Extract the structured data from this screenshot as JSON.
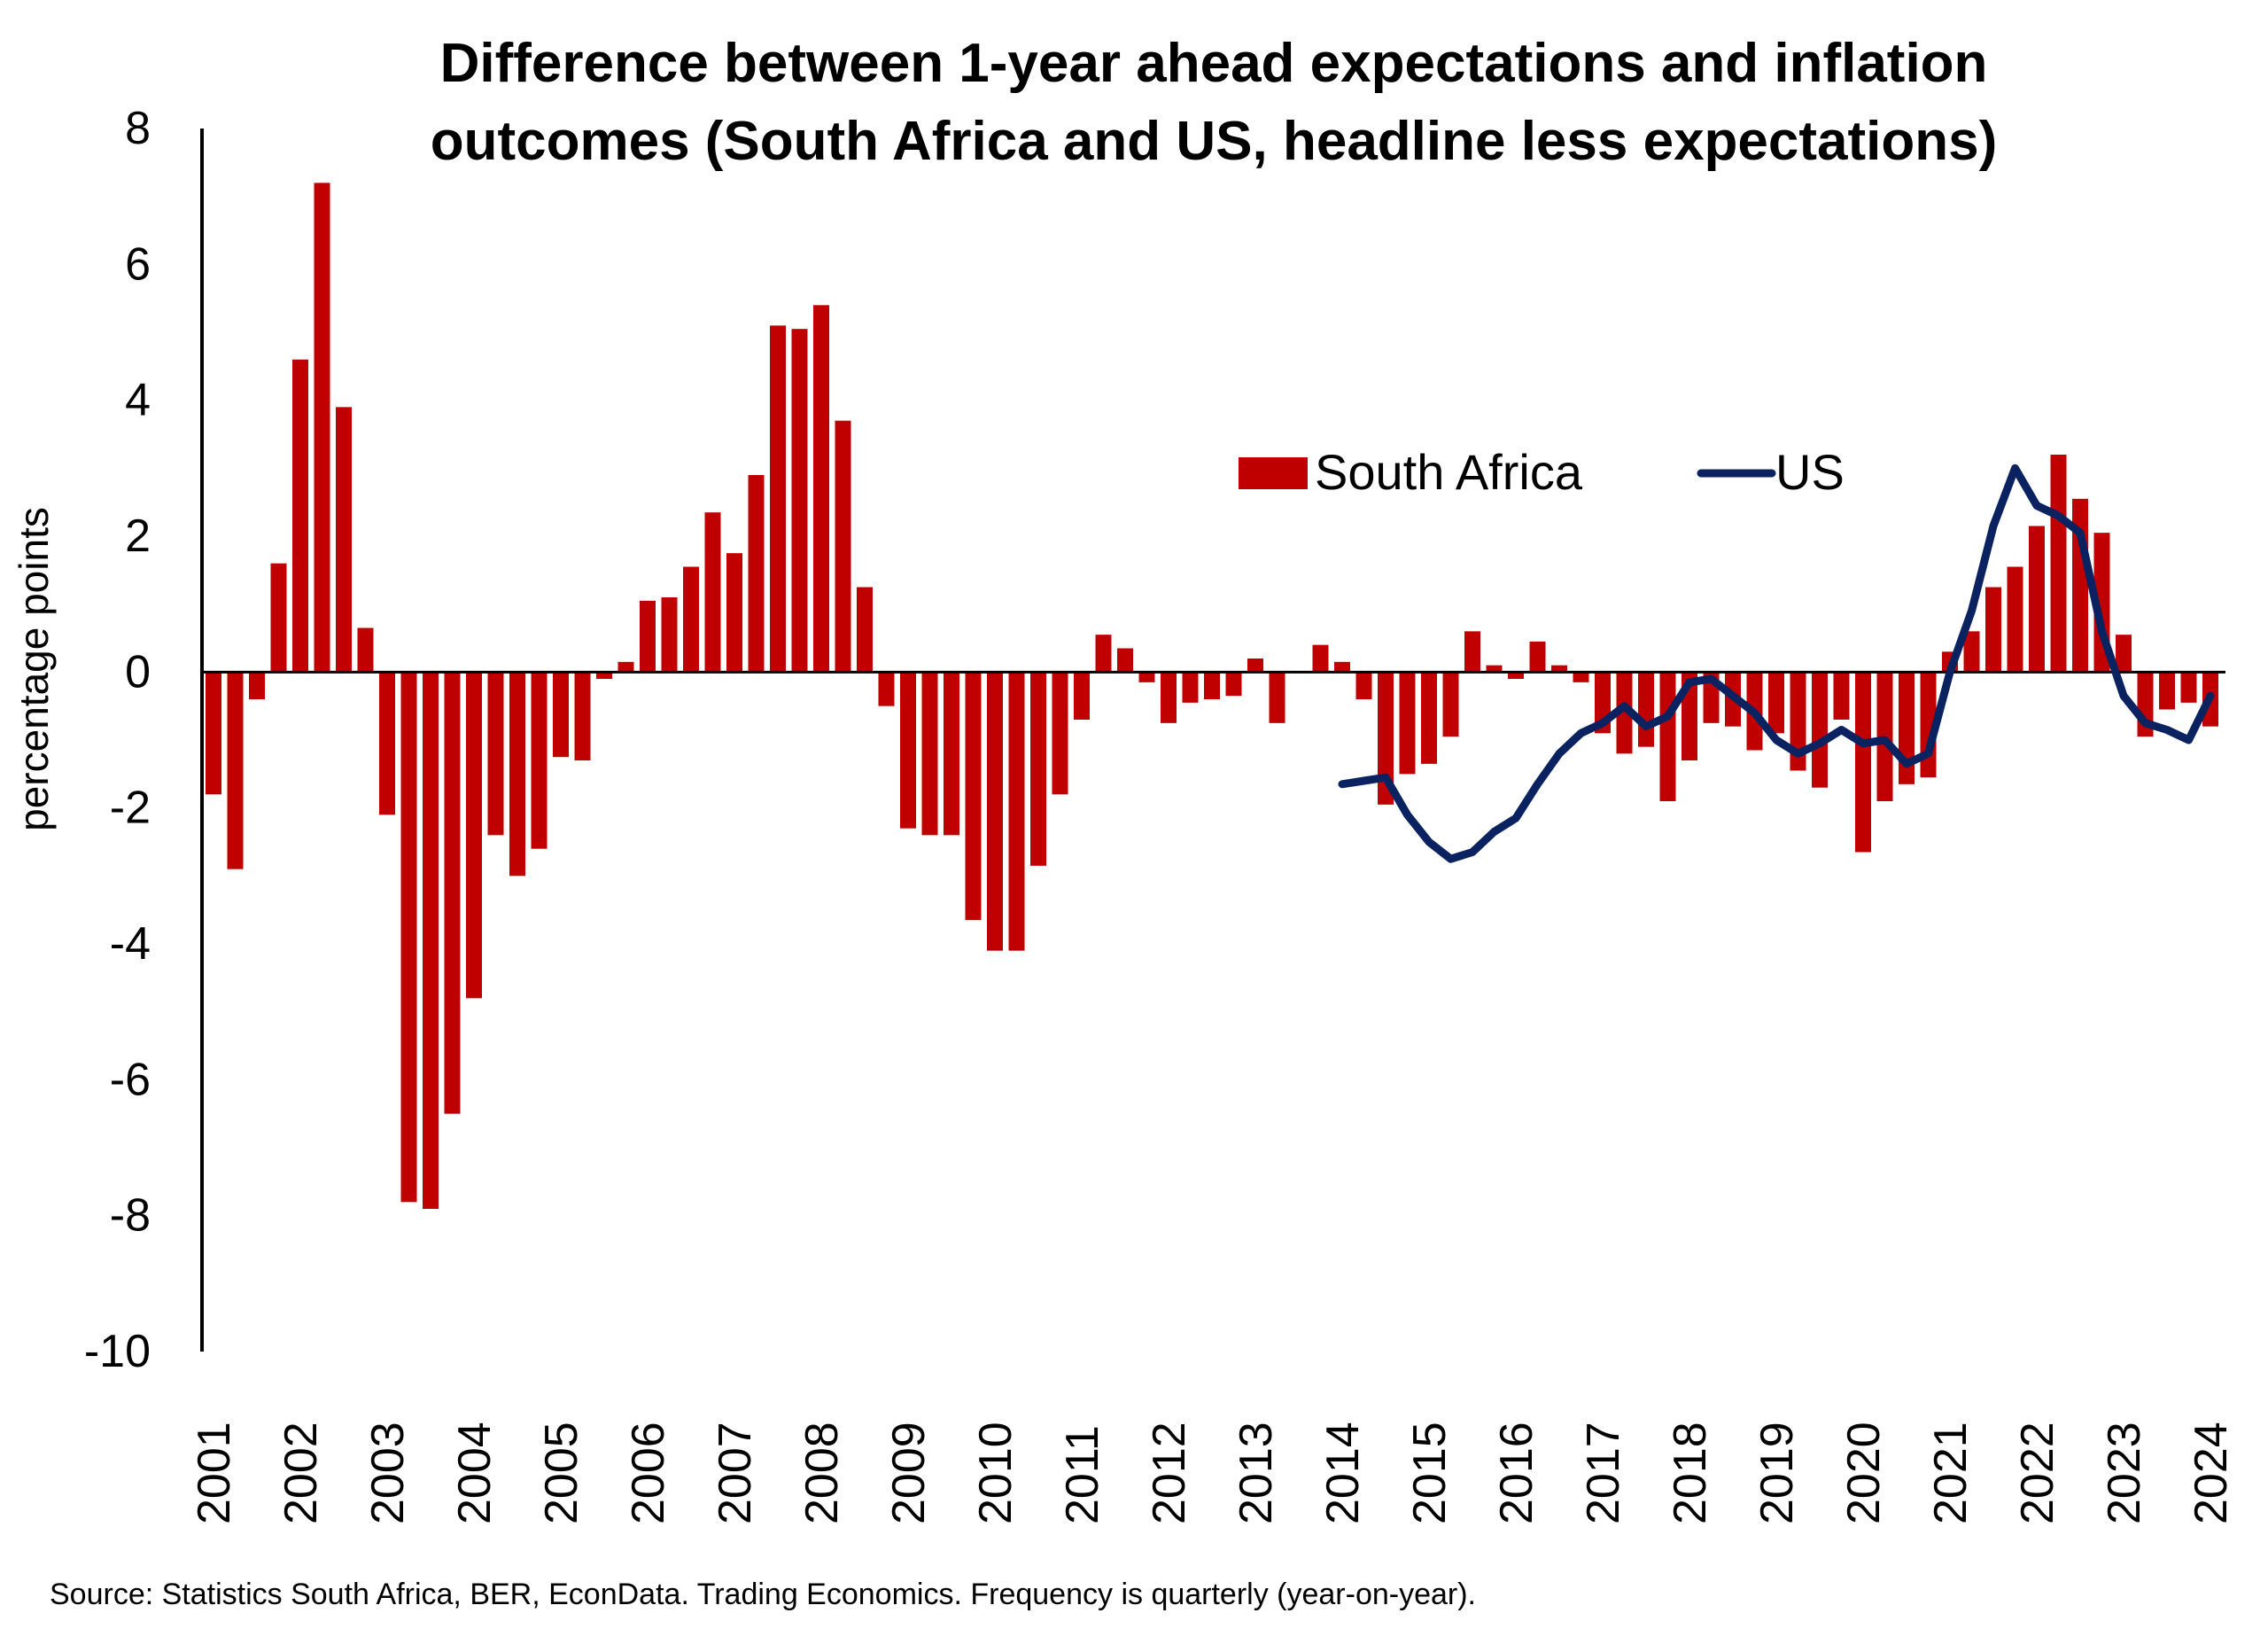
{
  "chart_data": {
    "type": "bar",
    "title_lines": [
      "Difference between 1-year ahead expectations and inflation",
      "outcomes (South Africa and US, headline less expectations)"
    ],
    "ylabel": "percentage points",
    "ylim": [
      -10,
      8
    ],
    "yticks": [
      8,
      6,
      4,
      2,
      0,
      -2,
      -4,
      -6,
      -8,
      -10
    ],
    "ytick_labels": [
      "8",
      "6",
      "4",
      "2",
      "0",
      "-2",
      "-4",
      "-6",
      "-8",
      "-10"
    ],
    "xtick_labels": [
      "2001",
      "2002",
      "2003",
      "2004",
      "2005",
      "2006",
      "2007",
      "2008",
      "2009",
      "2010",
      "2011",
      "2012",
      "2013",
      "2014",
      "2015",
      "2016",
      "2017",
      "2018",
      "2019",
      "2020",
      "2021",
      "2022",
      "2023",
      "2024"
    ],
    "x_start": "2001 Q1",
    "frequency": "quarterly",
    "legend_position": "upper-right",
    "grid": false,
    "series": [
      {
        "name": "South Africa",
        "kind": "bar",
        "color": "#C00000",
        "values": [
          -1.8,
          -2.9,
          -0.4,
          1.6,
          4.6,
          7.2,
          3.9,
          0.65,
          -2.1,
          -7.8,
          -7.9,
          -6.5,
          -4.8,
          -2.4,
          -3.0,
          -2.6,
          -1.25,
          -1.3,
          -0.1,
          0.15,
          1.05,
          1.1,
          1.55,
          2.35,
          1.75,
          2.9,
          5.1,
          5.05,
          5.4,
          3.7,
          1.25,
          -0.5,
          -2.3,
          -2.4,
          -2.4,
          -3.65,
          -4.1,
          -4.1,
          -2.85,
          -1.8,
          -0.7,
          0.55,
          0.35,
          -0.15,
          -0.75,
          -0.45,
          -0.4,
          -0.35,
          0.2,
          -0.75,
          0.0,
          0.4,
          0.15,
          -0.4,
          -1.95,
          -1.5,
          -1.35,
          -0.95,
          0.6,
          0.1,
          -0.1,
          0.45,
          0.1,
          -0.15,
          -0.9,
          -1.2,
          -1.1,
          -1.9,
          -1.3,
          -0.75,
          -0.8,
          -1.15,
          -0.9,
          -1.45,
          -1.7,
          -0.7,
          -2.65,
          -1.9,
          -1.65,
          -1.55,
          0.3,
          0.6,
          1.25,
          1.55,
          2.15,
          3.2,
          2.55,
          2.05,
          0.55,
          -0.95,
          -0.55,
          -0.45,
          -0.8
        ]
      },
      {
        "name": "US",
        "kind": "line",
        "color": "#0B2260",
        "start_index": 52,
        "values": [
          -1.65,
          -1.6,
          -1.55,
          -2.1,
          -2.5,
          -2.75,
          -2.65,
          -2.35,
          -2.15,
          -1.65,
          -1.2,
          -0.9,
          -0.75,
          -0.5,
          -0.8,
          -0.65,
          -0.15,
          -0.1,
          -0.35,
          -0.6,
          -1.0,
          -1.2,
          -1.05,
          -0.85,
          -1.05,
          -1.0,
          -1.35,
          -1.2,
          0.0,
          0.9,
          2.15,
          3.0,
          2.45,
          2.3,
          2.05,
          0.6,
          -0.35,
          -0.75,
          -0.85,
          -1.0,
          -0.35
        ]
      }
    ]
  },
  "source_note": "Source: Statistics South Africa, BER, EconData. Trading Economics. Frequency is quarterly (year-on-year)."
}
